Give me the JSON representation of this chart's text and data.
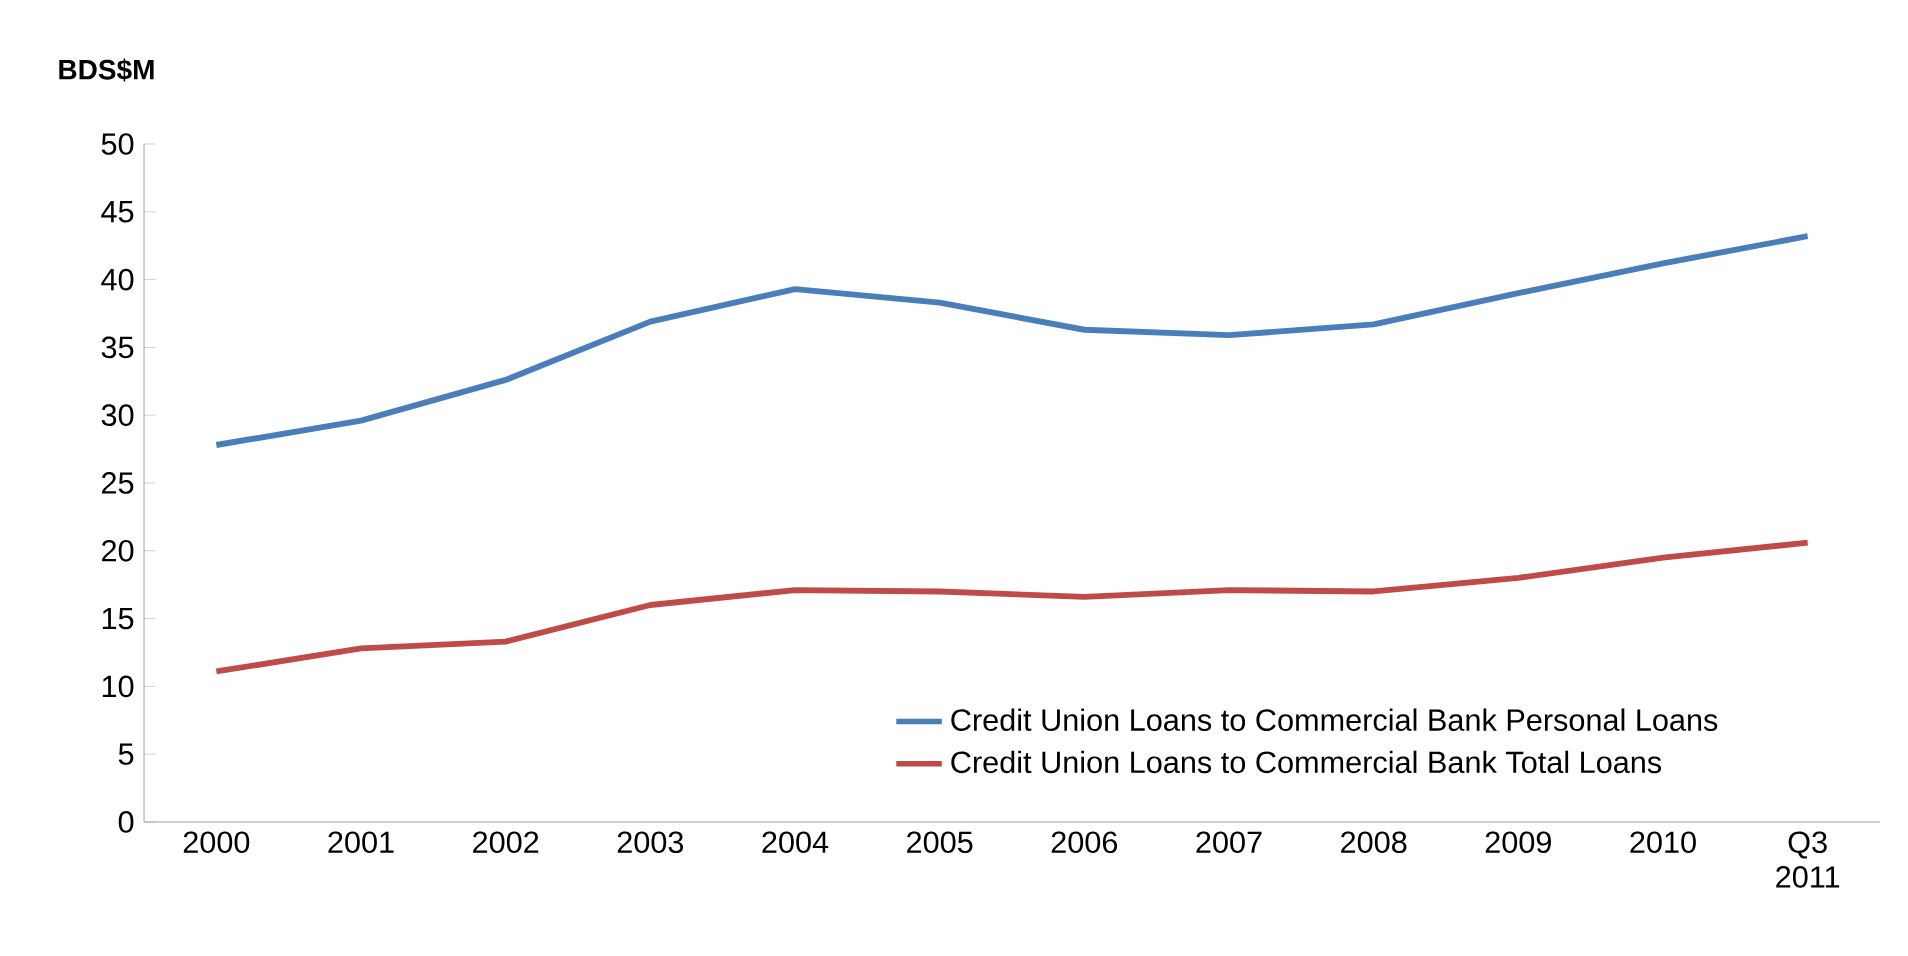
{
  "chart_data": {
    "type": "line",
    "ylabel": "BDS$M",
    "categories": [
      "2000",
      "2001",
      "2002",
      "2003",
      "2004",
      "2005",
      "2006",
      "2007",
      "2008",
      "2009",
      "2010",
      "Q3 2011"
    ],
    "series": [
      {
        "name": "Credit Union Loans to Commercial Bank Personal Loans",
        "color": "#4a7ebb",
        "values": [
          27.8,
          29.6,
          32.6,
          36.9,
          39.3,
          38.3,
          36.3,
          35.9,
          36.7,
          39.0,
          41.2,
          43.2
        ]
      },
      {
        "name": "Credit Union Loans to Commercial Bank Total Loans",
        "color": "#be4b48",
        "values": [
          11.1,
          12.8,
          13.3,
          16.0,
          17.1,
          17.0,
          16.6,
          17.1,
          17.0,
          18.0,
          19.5,
          20.6
        ]
      }
    ],
    "ylim": [
      0,
      50
    ],
    "yticks": [
      0,
      5,
      10,
      15,
      20,
      25,
      30,
      35,
      40,
      45,
      50
    ],
    "legend": "bottom right",
    "grid": false,
    "marker": "none",
    "line_style": "solid"
  }
}
